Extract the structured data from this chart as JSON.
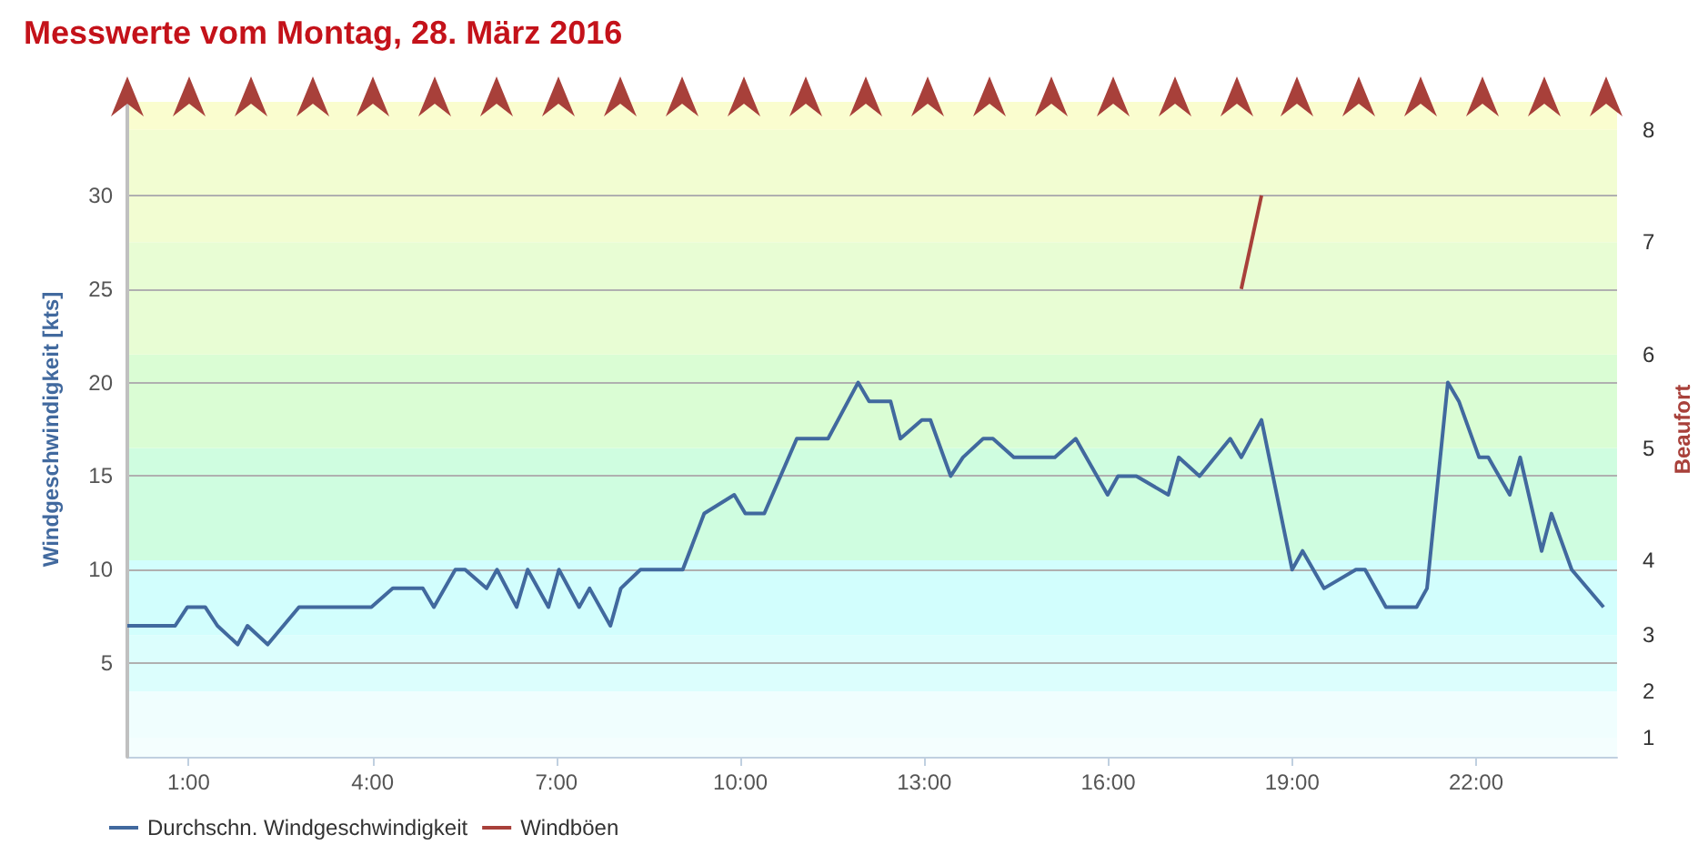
{
  "chart_data": {
    "type": "line",
    "title": "Messwerte vom Montag, 28. März 2016",
    "ylabel": "Windgeschwindigkeit [kts]",
    "y2label": "Beaufort",
    "xlim": [
      0,
      24.3
    ],
    "xticks": [
      {
        "value": 1,
        "label": "1:00"
      },
      {
        "value": 4,
        "label": "4:00"
      },
      {
        "value": 7,
        "label": "7:00"
      },
      {
        "value": 10,
        "label": "10:00"
      },
      {
        "value": 13,
        "label": "13:00"
      },
      {
        "value": 16,
        "label": "16:00"
      },
      {
        "value": 19,
        "label": "19:00"
      },
      {
        "value": 22,
        "label": "22:00"
      }
    ],
    "ylim": [
      0,
      35
    ],
    "yticks": [
      5,
      10,
      15,
      20,
      25,
      30
    ],
    "grid": "y",
    "legend": "bottom left",
    "marker": "none",
    "line_style": "solid",
    "bands": [
      {
        "axis": "y",
        "from": 0,
        "to": 1,
        "color": "#f4fefe"
      },
      {
        "axis": "y",
        "from": 1,
        "to": 3.5,
        "color": "#f0fefe",
        "label": "1"
      },
      {
        "axis": "y",
        "from": 3.5,
        "to": 6.5,
        "color": "#dcfefd",
        "label": "2"
      },
      {
        "axis": "y",
        "from": 6.5,
        "to": 10.5,
        "color": "#d2fefd",
        "label": "3"
      },
      {
        "axis": "y",
        "from": 10.5,
        "to": 16.5,
        "color": "#cffde0",
        "label": "4"
      },
      {
        "axis": "y",
        "from": 16.5,
        "to": 21.5,
        "color": "#dafdd4",
        "label": "5"
      },
      {
        "axis": "y",
        "from": 21.5,
        "to": 27.5,
        "color": "#e8fdd4",
        "label": "6"
      },
      {
        "axis": "y",
        "from": 27.5,
        "to": 33.5,
        "color": "#f2fdd2",
        "label": "7"
      },
      {
        "axis": "y",
        "from": 33.5,
        "to": 35,
        "color": "#fafdcf",
        "label": "8"
      }
    ],
    "series": [
      {
        "name": "Durchschn. Windgeschwindigkeit",
        "color": "#41699e",
        "x": [
          0,
          0.78,
          0.98,
          1.27,
          1.47,
          1.8,
          1.96,
          2.29,
          2.8,
          3.98,
          4.33,
          4.82,
          5.0,
          5.35,
          5.51,
          5.86,
          6.03,
          6.35,
          6.53,
          6.87,
          7.04,
          7.37,
          7.54,
          7.88,
          8.05,
          8.37,
          9.06,
          9.41,
          9.9,
          10.08,
          10.39,
          10.92,
          11.43,
          11.92,
          12.1,
          12.45,
          12.61,
          12.96,
          13.1,
          13.43,
          13.63,
          13.96,
          14.12,
          14.46,
          15.13,
          15.47,
          15.99,
          16.16,
          16.46,
          16.98,
          17.15,
          17.49,
          17.99,
          18.17,
          18.5,
          19.0,
          19.17,
          19.52,
          20.04,
          20.19,
          20.53,
          21.03,
          21.2,
          21.54,
          21.72,
          22.05,
          22.2,
          22.55,
          22.72,
          23.07,
          23.23,
          23.56,
          24.08
        ],
        "values": [
          7,
          7,
          8,
          8,
          7,
          6,
          7,
          6,
          8,
          8,
          9,
          9,
          8,
          10,
          10,
          9,
          10,
          8,
          10,
          8,
          10,
          8,
          9,
          7,
          9,
          10,
          10,
          13,
          14,
          13,
          13,
          17,
          17,
          20,
          19,
          19,
          17,
          18,
          18,
          15,
          16,
          17,
          17,
          16,
          16,
          17,
          14,
          15,
          15,
          14,
          16,
          15,
          17,
          16,
          18,
          10,
          11,
          9,
          10,
          10,
          8,
          8,
          9,
          20,
          19,
          16,
          16,
          14,
          16,
          11,
          13,
          10,
          8
        ]
      },
      {
        "name": "Windböen",
        "color": "#a8403a",
        "x": [
          18.17,
          18.5
        ],
        "values": [
          25,
          30
        ]
      }
    ]
  }
}
